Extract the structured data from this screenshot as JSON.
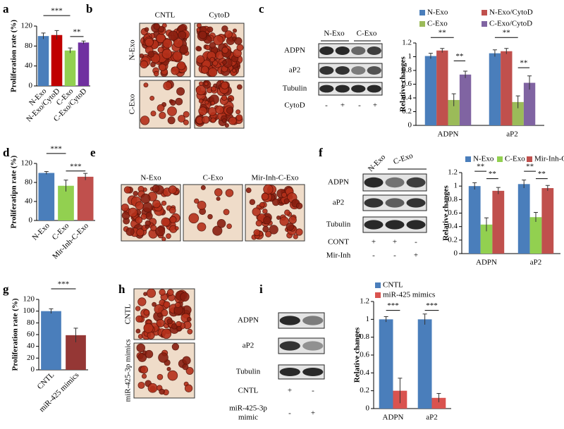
{
  "panels": [
    "a",
    "b",
    "c",
    "d",
    "e",
    "f",
    "g",
    "h",
    "i"
  ],
  "micrographs_b": {
    "columns": [
      "CNTL",
      "CytoD"
    ],
    "rows": [
      "N-Exo",
      "C-Exo"
    ]
  },
  "blot_c": {
    "lanes": [
      "N-Exo",
      "C-Exo"
    ],
    "proteins": [
      "ADPN",
      "aP2",
      "Tubulin"
    ],
    "conditions": [
      {
        "label": "CytoD",
        "marks": [
          "-",
          "+",
          "-",
          "+"
        ]
      }
    ]
  },
  "micrographs_e": {
    "columns": [
      "N-Exo",
      "C-Exo",
      "Mir-Inh-C-Exo"
    ]
  },
  "blot_f": {
    "lanes": [
      "N-Exo",
      "C-Exo"
    ],
    "proteins": [
      "ADPN",
      "aP2",
      "Tubulin"
    ],
    "conditions": [
      {
        "label": "CONT",
        "marks": [
          "+",
          "+",
          "-"
        ]
      },
      {
        "label": "Mir-Inh",
        "marks": [
          "-",
          "-",
          "+"
        ]
      }
    ]
  },
  "micrographs_h": {
    "rows": [
      "CNTL",
      "miR-425-3p mimics"
    ]
  },
  "blot_i": {
    "proteins": [
      "ADPN",
      "aP2",
      "Tubulin"
    ],
    "conditions": [
      {
        "label": [
          "CNTL"
        ],
        "marks": [
          "+",
          "-"
        ]
      },
      {
        "label": [
          "miR-425-3p",
          "mimic"
        ],
        "marks": [
          "-",
          "+"
        ]
      }
    ]
  },
  "chart_data": [
    {
      "type": "bar",
      "ylabel": "Proliferation rate (%)",
      "categories": [
        "N-Exo",
        "N-Exo/CytoD",
        "C-Exo",
        "C-Exo/CytoD"
      ],
      "values": [
        100,
        102,
        71,
        87
      ],
      "errors": [
        6,
        9,
        5,
        3
      ],
      "colors": [
        "#4a7ebb",
        "#c00000",
        "#92d050",
        "#7030a0"
      ],
      "ylim": [
        0,
        120
      ],
      "yticks": [
        0,
        40,
        80,
        120
      ],
      "annotations": [
        "***",
        "**"
      ]
    },
    {
      "type": "grouped_bar",
      "ylabel": "Relative changes",
      "categories": [
        "ADPN",
        "aP2"
      ],
      "series": [
        {
          "name": "N-Exo",
          "color": "#4a7ebb",
          "values": [
            1.01,
            1.05
          ],
          "errors": [
            0.04,
            0.05
          ]
        },
        {
          "name": "N-Exo/CytoD",
          "color": "#c0504d",
          "values": [
            1.09,
            1.08
          ],
          "errors": [
            0.03,
            0.04
          ]
        },
        {
          "name": "C-Exo",
          "color": "#9bbb59",
          "values": [
            0.37,
            0.34
          ],
          "errors": [
            0.09,
            0.09
          ]
        },
        {
          "name": "C-Exo/CytoD",
          "color": "#8064a2",
          "values": [
            0.74,
            0.62
          ],
          "errors": [
            0.05,
            0.1
          ]
        }
      ],
      "ylim": [
        0,
        1.2
      ],
      "yticks": [
        0,
        0.2,
        0.4,
        0.6,
        0.8,
        1,
        1.2
      ],
      "annotations": [
        "**",
        "**",
        "**",
        "**"
      ]
    },
    {
      "type": "bar",
      "ylabel": "Proliferatipn rate (%)",
      "categories": [
        "N-Exo",
        "C-Exo",
        "Mir-Inh-C-Exo"
      ],
      "values": [
        100,
        73,
        92
      ],
      "errors": [
        3,
        12,
        7
      ],
      "colors": [
        "#4a7ebb",
        "#92d050",
        "#c0504d"
      ],
      "ylim": [
        0,
        120
      ],
      "yticks": [
        0,
        40,
        80,
        120
      ],
      "annotations": [
        "***",
        "***"
      ]
    },
    {
      "type": "grouped_bar",
      "ylabel": "Relative changes",
      "categories": [
        "ADPN",
        "aP2"
      ],
      "series": [
        {
          "name": "N-Exo",
          "color": "#4a7ebb",
          "values": [
            1.0,
            1.03
          ],
          "errors": [
            0.05,
            0.06
          ]
        },
        {
          "name": "C-Exo",
          "color": "#92d050",
          "values": [
            0.43,
            0.54
          ],
          "errors": [
            0.1,
            0.07
          ]
        },
        {
          "name": "Mir-Inh-C-Exo",
          "color": "#c0504d",
          "values": [
            0.93,
            0.97
          ],
          "errors": [
            0.05,
            0.04
          ]
        }
      ],
      "ylim": [
        0,
        1.2
      ],
      "yticks": [
        0,
        0.2,
        0.4,
        0.6,
        0.8,
        1,
        1.2
      ],
      "annotations": [
        "**",
        "**",
        "**",
        "**"
      ]
    },
    {
      "type": "bar",
      "ylabel": "Proliferation rate (%)",
      "categories": [
        "CNTL",
        "miR-425 mimics"
      ],
      "values": [
        100,
        59
      ],
      "errors": [
        4,
        12
      ],
      "colors": [
        "#4a7ebb",
        "#953735"
      ],
      "ylim": [
        0,
        120
      ],
      "yticks": [
        0,
        20,
        40,
        60,
        80,
        100,
        120
      ],
      "annotations": [
        "***"
      ]
    },
    {
      "type": "grouped_bar",
      "ylabel": "Relative changes",
      "categories": [
        "ADPN",
        "aP2"
      ],
      "series": [
        {
          "name": "CNTL",
          "color": "#4a7ebb",
          "values": [
            1.0,
            1.0
          ],
          "errors": [
            0.03,
            0.06
          ]
        },
        {
          "name": "miR-425 mimics",
          "color": "#d9534f",
          "values": [
            0.2,
            0.12
          ],
          "errors": [
            0.14,
            0.05
          ]
        }
      ],
      "ylim": [
        0,
        1.2
      ],
      "yticks": [
        0,
        0.2,
        0.4,
        0.6,
        0.8,
        1,
        1.2
      ],
      "annotations": [
        "***",
        "***"
      ]
    }
  ]
}
